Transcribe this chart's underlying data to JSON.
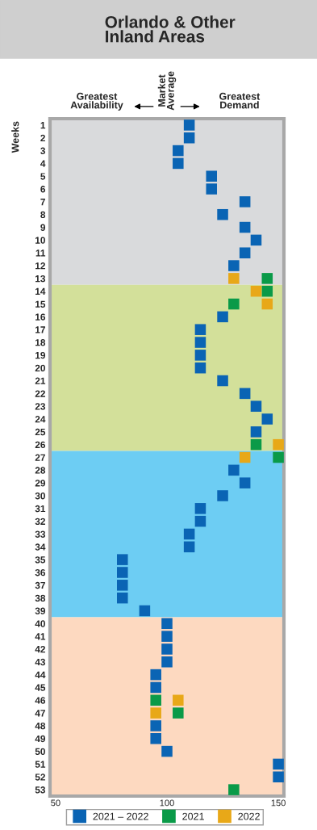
{
  "chart_data": {
    "type": "scatter",
    "orientation": "horizontal",
    "title": "Orlando & Other\nInland Areas",
    "ylabel": "Weeks",
    "annotations": [
      "Greatest\nAvailability",
      "Market\nAverage",
      "Greatest\nDemand"
    ],
    "categories": [
      "1",
      "2",
      "3",
      "4",
      "5",
      "6",
      "7",
      "8",
      "9",
      "10",
      "11",
      "12",
      "13",
      "14",
      "15",
      "16",
      "17",
      "18",
      "19",
      "20",
      "21",
      "22",
      "23",
      "24",
      "25",
      "26",
      "27",
      "28",
      "29",
      "30",
      "31",
      "32",
      "33",
      "34",
      "35",
      "36",
      "37",
      "38",
      "39",
      "40",
      "41",
      "42",
      "43",
      "44",
      "45",
      "46",
      "47",
      "48",
      "49",
      "50",
      "51",
      "52",
      "53"
    ],
    "series": [
      {
        "name": "2021 – 2022",
        "color": "#0a64b4",
        "values": [
          110,
          110,
          105,
          105,
          120,
          120,
          135,
          125,
          135,
          140,
          135,
          130,
          null,
          null,
          null,
          125,
          115,
          115,
          115,
          115,
          125,
          135,
          140,
          145,
          140,
          null,
          null,
          130,
          135,
          125,
          115,
          115,
          110,
          110,
          80,
          80,
          80,
          80,
          90,
          100,
          100,
          100,
          100,
          95,
          95,
          null,
          null,
          95,
          95,
          100,
          150,
          150,
          null
        ]
      },
      {
        "name": "2021",
        "color": "#0a9a48",
        "values": [
          null,
          null,
          null,
          null,
          null,
          null,
          null,
          null,
          null,
          null,
          null,
          null,
          145,
          145,
          130,
          null,
          null,
          null,
          null,
          null,
          null,
          null,
          null,
          null,
          null,
          140,
          150,
          null,
          null,
          null,
          null,
          null,
          null,
          null,
          null,
          null,
          null,
          null,
          null,
          null,
          null,
          null,
          null,
          null,
          null,
          95,
          105,
          null,
          null,
          null,
          null,
          null,
          130
        ]
      },
      {
        "name": "2022",
        "color": "#e8a818",
        "values": [
          null,
          null,
          null,
          null,
          null,
          null,
          null,
          null,
          null,
          null,
          null,
          null,
          130,
          140,
          145,
          null,
          null,
          null,
          null,
          null,
          null,
          null,
          null,
          null,
          null,
          150,
          135,
          null,
          null,
          null,
          null,
          null,
          null,
          null,
          null,
          null,
          null,
          null,
          null,
          null,
          null,
          null,
          null,
          null,
          null,
          105,
          95,
          null,
          null,
          null,
          null,
          null,
          null
        ]
      }
    ],
    "bands": [
      {
        "axis": "y",
        "from": "1",
        "to": "13",
        "label": null,
        "color": "#d9dadc"
      },
      {
        "axis": "y",
        "from": "14",
        "to": "26",
        "label": null,
        "color": "#d3e09a"
      },
      {
        "axis": "y",
        "from": "27",
        "to": "39",
        "label": null,
        "color": "#6dcdf3"
      },
      {
        "axis": "y",
        "from": "40",
        "to": "53",
        "label": null,
        "color": "#fdd9c0"
      }
    ],
    "xlim": [
      47.5,
      152.5
    ],
    "xticks": [
      50,
      100,
      150
    ],
    "marker": "square",
    "legend": "bottom",
    "grid": false
  }
}
